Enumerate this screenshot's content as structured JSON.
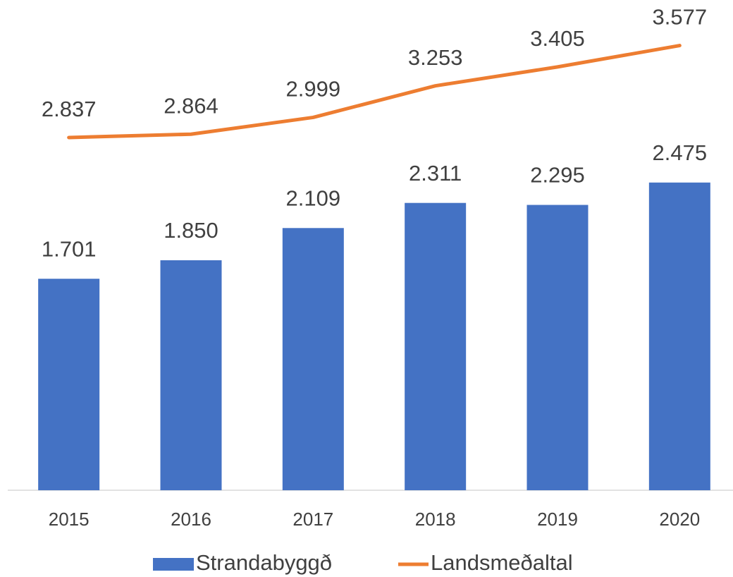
{
  "chart_data": {
    "type": "bar",
    "categories": [
      "2015",
      "2016",
      "2017",
      "2018",
      "2019",
      "2020"
    ],
    "ylim": [
      0,
      4000
    ],
    "legend": "bottom",
    "series": [
      {
        "name": "Strandabyggð",
        "type": "bar",
        "color": "#4472c4",
        "values": [
          1701,
          1850,
          2109,
          2311,
          2295,
          2475
        ],
        "value_labels": [
          "1.701",
          "1.850",
          "2.109",
          "2.311",
          "2.295",
          "2.475"
        ]
      },
      {
        "name": "Landsmeðaltal",
        "type": "line",
        "color": "#ed7d31",
        "values": [
          2837,
          2864,
          2999,
          3253,
          3405,
          3577
        ],
        "value_labels": [
          "2.837",
          "2.864",
          "2.999",
          "3.253",
          "3.405",
          "3.577"
        ]
      }
    ]
  }
}
